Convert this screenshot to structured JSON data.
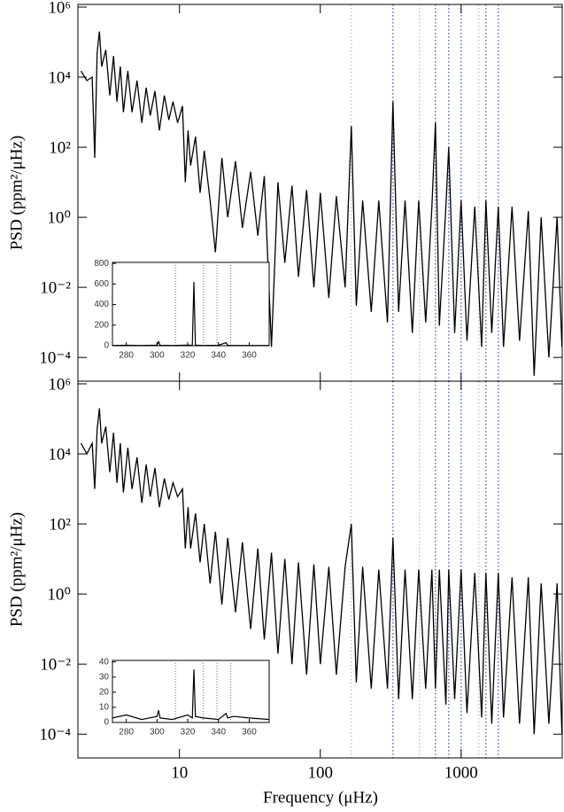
{
  "chart_data": [
    {
      "type": "line",
      "ylabel": "PSD (ppm²/μHz)",
      "log": true,
      "xlim": [
        1.9,
        5300
      ],
      "ylim": [
        2.1e-05,
        1190000
      ],
      "xticks": [
        10,
        100,
        1000
      ],
      "yticks": [
        {
          "value": 1000000,
          "label": "10⁶"
        },
        {
          "value": 10000,
          "label": "10⁴"
        },
        {
          "value": 100,
          "label": "10²"
        },
        {
          "value": 1,
          "label": "10⁰"
        },
        {
          "value": 0.01,
          "label": "10⁻²"
        },
        {
          "value": 0.0001,
          "label": "10⁻⁴"
        }
      ],
      "x": [
        2,
        2.2,
        2.4,
        2.5,
        2.6,
        2.7,
        2.8,
        3,
        3.2,
        3.4,
        3.6,
        3.8,
        4,
        4.3,
        4.6,
        5,
        5.4,
        5.8,
        6.2,
        6.7,
        7.2,
        7.8,
        8.4,
        9,
        9.7,
        10.5,
        11,
        11.5,
        12,
        13,
        14,
        15,
        16.5,
        18,
        20,
        22,
        25,
        28,
        32,
        36,
        40,
        45,
        50,
        56,
        63,
        70,
        80,
        90,
        100,
        115,
        130,
        150,
        166,
        180,
        200,
        230,
        260,
        300,
        328,
        360,
        400,
        450,
        500,
        560,
        620,
        657,
        700,
        780,
        817,
        900,
        1000,
        1100,
        1250,
        1400,
        1500,
        1650,
        1836,
        2000,
        2300,
        2600,
        3000,
        3300,
        3700,
        4200,
        4800,
        5200
      ],
      "series": [
        {
          "color": "#000000",
          "values": [
            15000,
            8000,
            10000,
            50,
            50000,
            200000,
            20000,
            60000,
            3000,
            40000,
            2000,
            20000,
            1000,
            15000,
            1000,
            8000,
            500,
            5000,
            800,
            4000,
            300,
            3000,
            600,
            2000,
            500,
            1500,
            10,
            300,
            30,
            200,
            5,
            80,
            3,
            0.1,
            50,
            1,
            40,
            0.5,
            20,
            0.3,
            15,
            0.0002,
            10,
            0.05,
            8,
            0.02,
            6,
            0.01,
            5,
            0.005,
            4,
            0.01,
            400,
            0.003,
            3,
            0.002,
            3,
            0.001,
            2000,
            0.002,
            3,
            0.0005,
            3,
            0.001,
            2,
            500,
            0.0008,
            2,
            100,
            0.0005,
            3,
            0.0003,
            2,
            0.0002,
            3,
            0.0005,
            2,
            0.0002,
            2,
            0.0003,
            1.5,
            3e-05,
            1,
            0.0001,
            1,
            0.0002
          ]
        }
      ],
      "markers": {
        "x": [
          166,
          328,
          506,
          657,
          817,
          1000,
          1337,
          1500,
          1836
        ],
        "colors": [
          "#b0b8d8",
          "#3050c0",
          "#b0b8d8",
          "#3050c0",
          "#3050c0",
          "#3050c0",
          "#b0b8d8",
          "#3050c0",
          "#3050c0"
        ]
      },
      "inset": {
        "xlim": [
          271,
          373
        ],
        "ylim": [
          0,
          810
        ],
        "xticks": [
          280,
          300,
          320,
          340,
          360
        ],
        "yticks": [
          0,
          200,
          400,
          600,
          800
        ],
        "x": [
          271,
          280,
          290,
          300,
          301,
          302,
          310,
          320,
          323,
          324,
          325,
          330,
          340,
          345,
          346,
          350,
          360,
          373
        ],
        "values": [
          3,
          4,
          3,
          5,
          40,
          4,
          3,
          5,
          4,
          620,
          5,
          3,
          4,
          30,
          4,
          3,
          3,
          3
        ],
        "markers": [
          312,
          330,
          339,
          348
        ]
      }
    },
    {
      "type": "line",
      "ylabel": "PSD (ppm²/μHz)",
      "xlabel": "Frequency (μHz)",
      "log": true,
      "xlim": [
        1.9,
        5300
      ],
      "ylim": [
        2.1e-05,
        1190000
      ],
      "xticks": [
        10,
        100,
        1000
      ],
      "yticks": [
        {
          "value": 1000000,
          "label": "10⁶"
        },
        {
          "value": 10000,
          "label": "10⁴"
        },
        {
          "value": 100,
          "label": "10²"
        },
        {
          "value": 1,
          "label": "10⁰"
        },
        {
          "value": 0.01,
          "label": "10⁻²"
        },
        {
          "value": 0.0001,
          "label": "10⁻⁴"
        }
      ],
      "x": [
        2,
        2.2,
        2.4,
        2.5,
        2.6,
        2.7,
        2.8,
        3,
        3.2,
        3.4,
        3.6,
        3.8,
        4,
        4.3,
        4.6,
        5,
        5.4,
        5.8,
        6.2,
        6.7,
        7.2,
        7.8,
        8.4,
        9,
        9.7,
        10.5,
        11,
        11.5,
        12,
        13,
        14,
        15,
        16.5,
        18,
        20,
        22,
        25,
        28,
        32,
        36,
        40,
        45,
        50,
        56,
        63,
        70,
        80,
        90,
        100,
        115,
        130,
        150,
        166,
        180,
        200,
        230,
        260,
        300,
        328,
        360,
        400,
        450,
        500,
        560,
        620,
        657,
        700,
        780,
        817,
        900,
        1000,
        1100,
        1250,
        1400,
        1500,
        1650,
        1836,
        2000,
        2300,
        2600,
        3000,
        3300,
        3700,
        4200,
        4800,
        5200
      ],
      "series": [
        {
          "color": "#000000",
          "values": [
            20000,
            10000,
            20000,
            1000,
            50000,
            200000,
            20000,
            60000,
            3000,
            40000,
            1500,
            20000,
            800,
            15000,
            1000,
            8000,
            400,
            5000,
            600,
            4000,
            300,
            2000,
            500,
            1500,
            600,
            1000,
            20,
            300,
            20,
            200,
            8,
            100,
            2,
            60,
            0.5,
            40,
            0.3,
            30,
            0.1,
            20,
            0.05,
            15,
            0.02,
            10,
            0.01,
            8,
            0.005,
            7,
            0.01,
            6,
            0.005,
            6,
            100,
            0.003,
            6,
            0.002,
            5,
            0.002,
            40,
            0.001,
            5,
            0.001,
            5,
            0.002,
            5,
            0.002,
            5,
            0.0007,
            5,
            0.001,
            5,
            0.0004,
            4,
            0.0003,
            4,
            0.0002,
            4,
            0.0003,
            3,
            0.0002,
            3,
            0.0001,
            2,
            0.0002,
            2,
            0.0001
          ]
        }
      ],
      "markers": {
        "x": [
          166,
          328,
          506,
          657,
          817,
          1000,
          1337,
          1500,
          1836
        ],
        "colors": [
          "#b0b8d8",
          "#3050c0",
          "#b0b8d8",
          "#3050c0",
          "#3050c0",
          "#3050c0",
          "#b0b8d8",
          "#3050c0",
          "#3050c0"
        ]
      },
      "inset": {
        "xlim": [
          271,
          373
        ],
        "ylim": [
          0,
          41
        ],
        "xticks": [
          280,
          300,
          320,
          340,
          360
        ],
        "yticks": [
          0,
          10,
          20,
          30,
          40
        ],
        "x": [
          271,
          280,
          290,
          300,
          301,
          302,
          310,
          320,
          323,
          324,
          325,
          330,
          340,
          345,
          346,
          350,
          360,
          373
        ],
        "values": [
          3,
          5,
          2,
          4,
          8,
          3,
          2,
          5,
          3,
          35,
          4,
          3,
          2,
          6,
          3,
          4,
          3,
          2
        ],
        "markers": [
          312,
          330,
          339,
          348
        ]
      }
    }
  ]
}
